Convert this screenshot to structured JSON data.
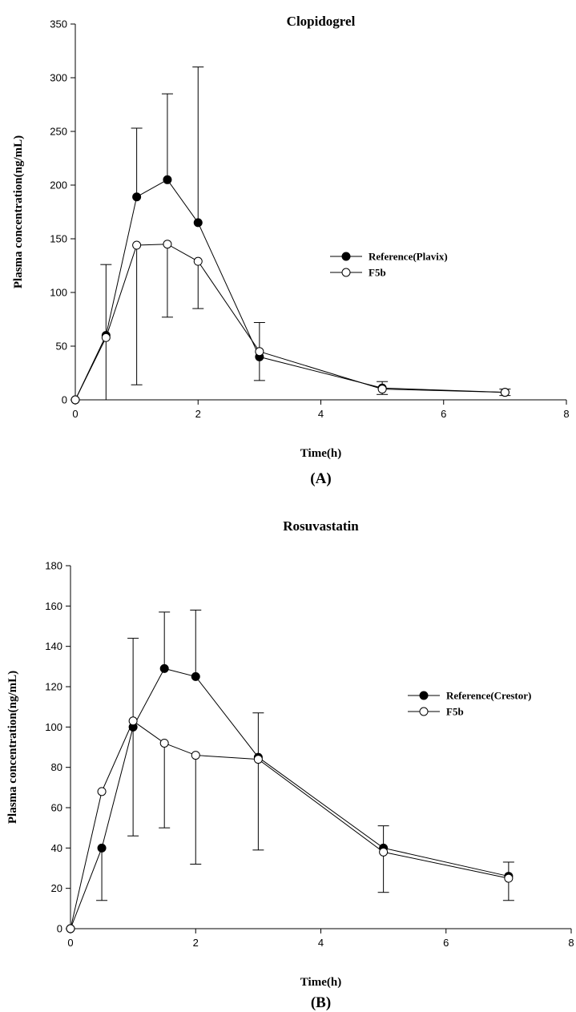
{
  "chart_data": [
    {
      "type": "line",
      "title": "Clopidogrel",
      "xlabel": "Time(h)",
      "ylabel": "Plasma concentration(ng/mL)",
      "panel_label": "(A)",
      "xlim": [
        0,
        8
      ],
      "ylim": [
        0,
        350
      ],
      "xticks": [
        0,
        2,
        4,
        6,
        8
      ],
      "yticks": [
        0,
        50,
        100,
        150,
        200,
        250,
        300,
        350
      ],
      "grid": false,
      "legend_position": "right",
      "x": [
        0,
        0.5,
        1,
        1.5,
        2,
        3,
        5,
        7
      ],
      "series": [
        {
          "name": "Reference(Plavix)",
          "marker": "filled-circle",
          "values": [
            0,
            60,
            189,
            205,
            165,
            40,
            11,
            7
          ],
          "error_up": [
            0,
            0,
            64,
            80,
            145,
            0,
            0,
            0
          ],
          "error_down": [
            0,
            0,
            0,
            0,
            0,
            22,
            0,
            0
          ]
        },
        {
          "name": "F5b",
          "marker": "open-circle",
          "values": [
            0,
            58,
            144,
            145,
            129,
            45,
            10,
            7
          ],
          "error_up": [
            0,
            68,
            0,
            0,
            0,
            27,
            7,
            3
          ],
          "error_down": [
            0,
            58,
            130,
            68,
            44,
            0,
            5,
            3
          ]
        }
      ]
    },
    {
      "type": "line",
      "title": "Rosuvastatin",
      "xlabel": "Time(h)",
      "ylabel": "Plasma concentration(ng/mL)",
      "panel_label": "(B)",
      "xlim": [
        0,
        8
      ],
      "ylim": [
        0,
        180
      ],
      "xticks": [
        0,
        2,
        4,
        6,
        8
      ],
      "yticks": [
        0,
        20,
        40,
        60,
        80,
        100,
        120,
        140,
        160,
        180
      ],
      "grid": false,
      "legend_position": "right",
      "x": [
        0,
        0.5,
        1,
        1.5,
        2,
        3,
        5,
        7
      ],
      "series": [
        {
          "name": "Reference(Crestor)",
          "marker": "filled-circle",
          "values": [
            0,
            40,
            100,
            129,
            125,
            85,
            40,
            26
          ],
          "error_up": [
            0,
            0,
            0,
            28,
            33,
            22,
            11,
            7
          ],
          "error_down": [
            0,
            26,
            54,
            0,
            0,
            0,
            0,
            0
          ]
        },
        {
          "name": "F5b",
          "marker": "open-circle",
          "values": [
            0,
            68,
            103,
            92,
            86,
            84,
            38,
            25
          ],
          "error_up": [
            0,
            0,
            41,
            0,
            0,
            0,
            0,
            0
          ],
          "error_down": [
            0,
            0,
            0,
            42,
            54,
            45,
            20,
            11
          ]
        }
      ]
    }
  ]
}
